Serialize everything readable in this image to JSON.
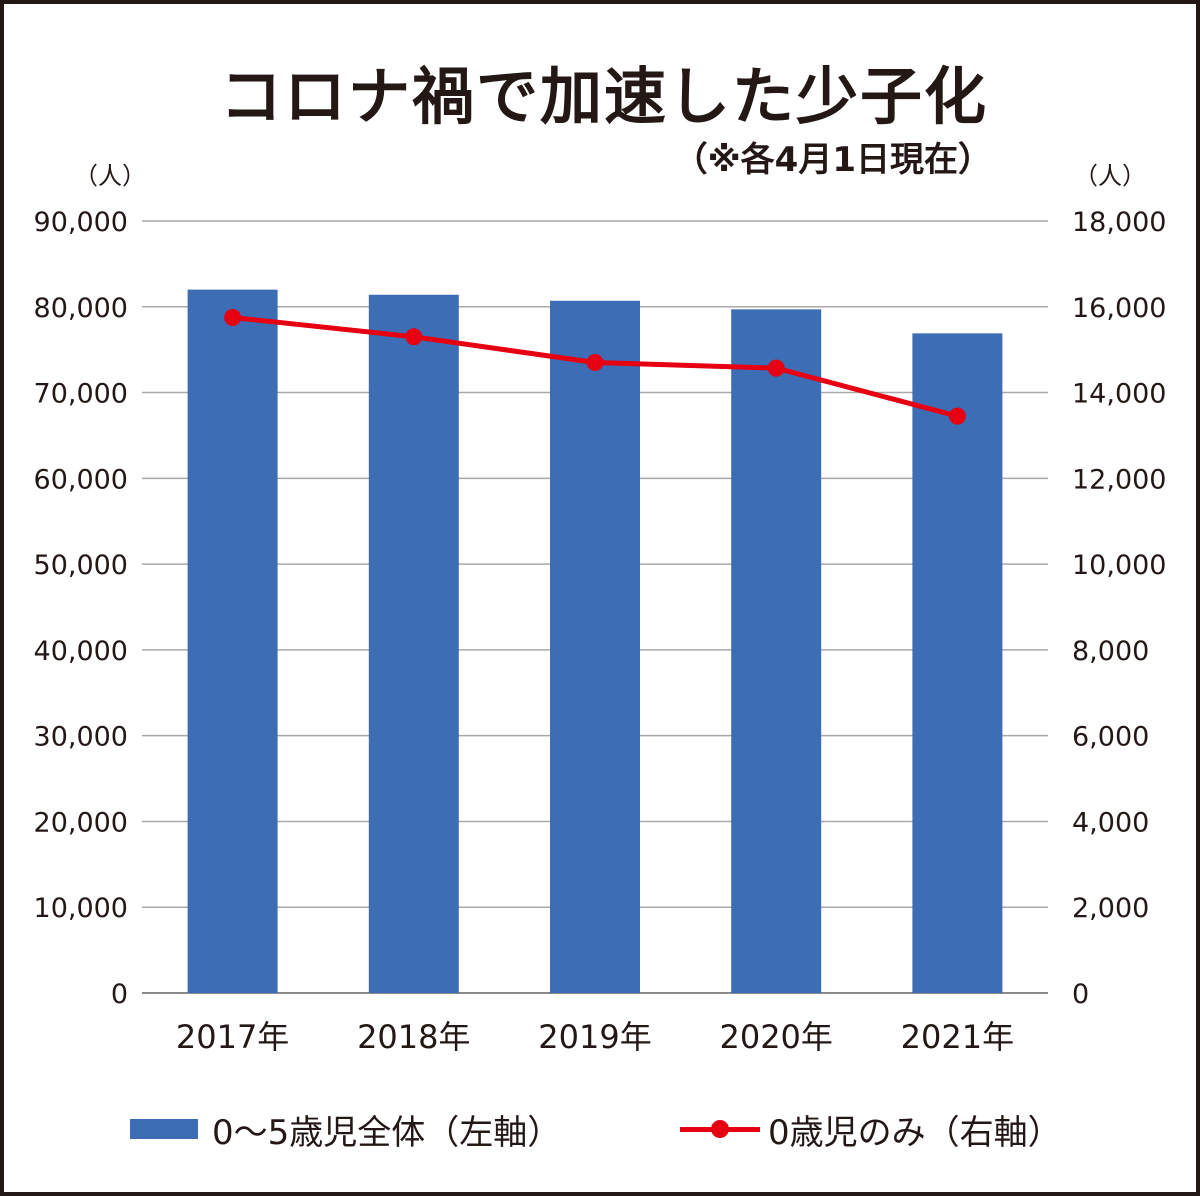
{
  "chart_data": {
    "type": "bar",
    "title": "コロナ禍で加速した少子化",
    "subtitle": "（※各4月1日現在）",
    "categories": [
      "2017年",
      "2018年",
      "2019年",
      "2020年",
      "2021年"
    ],
    "series": [
      {
        "name": "0〜5歳児全体（左軸）",
        "type": "bar",
        "axis": "left",
        "color": "#3d6db4",
        "values": [
          82000,
          81400,
          80700,
          79700,
          76900
        ]
      },
      {
        "name": "0歳児のみ（右軸）",
        "type": "line",
        "axis": "right",
        "color": "#e60012",
        "values": [
          15750,
          15300,
          14700,
          14570,
          13450
        ]
      }
    ],
    "left_axis": {
      "unit": "（人）",
      "ylim": [
        0,
        90000
      ],
      "ticks": [
        0,
        10000,
        20000,
        30000,
        40000,
        50000,
        60000,
        70000,
        80000,
        90000
      ],
      "tick_labels": [
        "0",
        "10,000",
        "20,000",
        "30,000",
        "40,000",
        "50,000",
        "60,000",
        "70,000",
        "80,000",
        "90,000"
      ]
    },
    "right_axis": {
      "unit": "（人）",
      "ylim": [
        0,
        18000
      ],
      "ticks": [
        0,
        2000,
        4000,
        6000,
        8000,
        10000,
        12000,
        14000,
        16000,
        18000
      ],
      "tick_labels": [
        "0",
        "2,000",
        "4,000",
        "6,000",
        "8,000",
        "10,000",
        "12,000",
        "14,000",
        "16,000",
        "18,000"
      ]
    },
    "grid": true,
    "legend_position": "bottom"
  }
}
